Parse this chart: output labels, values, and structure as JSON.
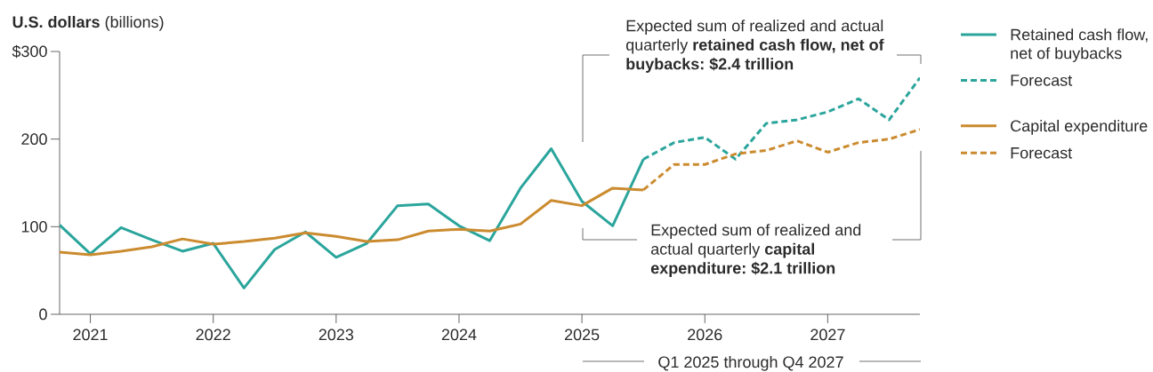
{
  "chart_data": {
    "type": "line",
    "ylabel": "**U.S. dollars** (billions)",
    "xlim": [
      2020.75,
      2027.75
    ],
    "xticks": [
      2021,
      2022,
      2023,
      2024,
      2025,
      2026,
      2027
    ],
    "ylim": [
      0,
      300
    ],
    "yticks": [
      0,
      100,
      200,
      {
        "value": 300,
        "label": "$300"
      }
    ],
    "legend": "right",
    "series": [
      {
        "name": "Retained cash flow, net of buybacks",
        "color": "#2ba59c",
        "line_style": "solid",
        "x": [
          2020.75,
          2021,
          2021.25,
          2021.5,
          2021.75,
          2022,
          2022.25,
          2022.5,
          2022.75,
          2023,
          2023.25,
          2023.5,
          2023.75,
          2024,
          2024.25,
          2024.5,
          2024.75,
          2025,
          2025.25,
          2025.5
        ],
        "values": [
          102,
          69,
          99,
          85,
          72,
          81,
          30,
          74,
          94,
          65,
          81,
          124,
          126,
          101,
          84,
          144,
          189,
          129,
          101,
          177
        ]
      },
      {
        "name": "Forecast",
        "color": "#2ba59c",
        "line_style": "dashed",
        "x": [
          2025.5,
          2025.75,
          2026,
          2026.25,
          2026.5,
          2026.75,
          2027,
          2027.25,
          2027.5,
          2027.75
        ],
        "values": [
          177,
          196,
          202,
          177,
          218,
          222,
          231,
          246,
          222,
          270
        ]
      },
      {
        "name": "Capital expenditure",
        "color": "#cb8b2f",
        "line_style": "solid",
        "x": [
          2020.75,
          2021,
          2021.25,
          2021.5,
          2021.75,
          2022,
          2022.25,
          2022.5,
          2022.75,
          2023,
          2023.25,
          2023.5,
          2023.75,
          2024,
          2024.25,
          2024.5,
          2024.75,
          2025,
          2025.25,
          2025.5
        ],
        "values": [
          71,
          68,
          72,
          77,
          86,
          80,
          83,
          87,
          93,
          89,
          83,
          85,
          95,
          97,
          95,
          103,
          130,
          124,
          144,
          142
        ]
      },
      {
        "name": "Forecast",
        "color": "#cb8b2f",
        "line_style": "dashed",
        "x": [
          2025.5,
          2025.75,
          2026,
          2026.25,
          2026.5,
          2026.75,
          2027,
          2027.25,
          2027.5,
          2027.75
        ],
        "values": [
          142,
          171,
          171,
          183,
          187,
          198,
          185,
          196,
          200,
          211
        ]
      }
    ],
    "annotations": [
      "Expected sum of realized and actual quarterly **retained cash flow, net of buybacks: $2.4 trillion**",
      "Expected sum of realized and actual quarterly **capital expenditure: $2.1 trillion**",
      "Q1 2025 through Q4 2027"
    ]
  }
}
